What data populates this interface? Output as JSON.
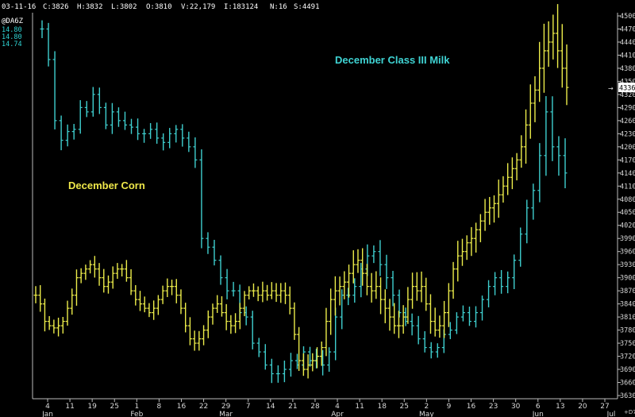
{
  "header": {
    "date": "03-11-16",
    "close": "C:3826",
    "high": "H:3832",
    "low": "L:3802",
    "open": "O:3810",
    "volume": "V:22,179",
    "open_interest": "I:183124",
    "n": "N:16",
    "s": "S:4491"
  },
  "symbol_box": {
    "symbol": "@DA6Z",
    "values": [
      "14.80",
      "14.80",
      "14.74"
    ]
  },
  "last_price_marker": "4336",
  "corner_label": "+D7",
  "colors": {
    "background": "#000000",
    "milk": "#3fcfcf",
    "corn": "#ecec4a",
    "axis": "#bdbdbd",
    "marker_bg": "#ffffff"
  },
  "chart_data": {
    "type": "bar",
    "style": "ohlc",
    "yscale": {
      "min": 3630,
      "max": 4500,
      "tick_step": 30
    },
    "y_ticks": [
      3630,
      3660,
      3690,
      3720,
      3750,
      3780,
      3810,
      3840,
      3870,
      3900,
      3930,
      3960,
      3990,
      4020,
      4050,
      4080,
      4110,
      4140,
      4170,
      4200,
      4230,
      4260,
      4290,
      4320,
      4350,
      4380,
      4410,
      4440,
      4470,
      4500
    ],
    "y_tick_labels": [
      "3630",
      "3660",
      "3690",
      "3720",
      "3750",
      "3780",
      "3810",
      "3840",
      "3870",
      "3900",
      "3930",
      "3960",
      "3990",
      "4020",
      "4050",
      "4080",
      "4110",
      "4140",
      "4170",
      "4200",
      "4230",
      "4260",
      "4290",
      "4320",
      "4350",
      "4380",
      "4410",
      "4440",
      "4470",
      "4500"
    ],
    "x_ticks": [
      "4",
      "11",
      "19",
      "25",
      "1",
      "8",
      "16",
      "22",
      "29",
      "7",
      "14",
      "21",
      "28",
      "4",
      "11",
      "18",
      "25",
      "2",
      "9",
      "16",
      "23",
      "30",
      "6",
      "13",
      "20",
      "27"
    ],
    "months": [
      "Jan",
      "Feb",
      "Mar",
      "Apr",
      "May",
      "Jun",
      "Jul"
    ],
    "annotations": {
      "milk": "December Class III Milk",
      "corn": "December Corn"
    },
    "series": [
      {
        "name": "December Class III Milk",
        "color": "#3fcfcf",
        "close": [
          4470,
          4400,
          4260,
          4215,
          4235,
          4240,
          4290,
          4280,
          4320,
          4290,
          4250,
          4280,
          4260,
          4250,
          4245,
          4230,
          4230,
          4240,
          4220,
          4210,
          4230,
          4240,
          4220,
          4200,
          4170,
          3990,
          3970,
          3940,
          3900,
          3870,
          3870,
          3820,
          3810,
          3750,
          3730,
          3700,
          3680,
          3680,
          3690,
          3710,
          3700,
          3730,
          3710,
          3720,
          3700,
          3730,
          3810,
          3860,
          3860,
          3880,
          3920,
          3950,
          3960,
          3930,
          3900,
          3860,
          3820,
          3800,
          3790,
          3760,
          3740,
          3730,
          3740,
          3770,
          3780,
          3810,
          3820,
          3800,
          3820,
          3850,
          3880,
          3900,
          3880,
          3900,
          3940,
          4000,
          4060,
          4100,
          4180,
          4280,
          4200,
          4180,
          4140
        ],
        "range": [
          40,
          40,
          40,
          35,
          30,
          30,
          30,
          30,
          30,
          30,
          30,
          30,
          30,
          30,
          30,
          35,
          30,
          30,
          30,
          30,
          30,
          30,
          30,
          30,
          40,
          40,
          40,
          35,
          35,
          35,
          30,
          30,
          30,
          30,
          30,
          30,
          35,
          30,
          30,
          30,
          30,
          30,
          30,
          30,
          35,
          35,
          40,
          40,
          35,
          35,
          40,
          40,
          45,
          45,
          40,
          40,
          35,
          35,
          35,
          35,
          35,
          30,
          30,
          30,
          30,
          30,
          30,
          30,
          30,
          30,
          30,
          30,
          30,
          35,
          40,
          45,
          50,
          50,
          60,
          70,
          70,
          70,
          70
        ]
      },
      {
        "name": "December Corn",
        "color": "#ecec4a",
        "close": [
          3860,
          3840,
          3800,
          3790,
          3785,
          3790,
          3800,
          3830,
          3860,
          3900,
          3910,
          3920,
          3930,
          3920,
          3900,
          3880,
          3890,
          3910,
          3920,
          3920,
          3900,
          3870,
          3850,
          3840,
          3830,
          3820,
          3830,
          3850,
          3870,
          3880,
          3880,
          3860,
          3830,
          3790,
          3760,
          3750,
          3760,
          3780,
          3810,
          3830,
          3840,
          3820,
          3800,
          3790,
          3800,
          3830,
          3860,
          3870,
          3870,
          3860,
          3870,
          3860,
          3870,
          3860,
          3870,
          3860,
          3830,
          3770,
          3710,
          3690,
          3700,
          3710,
          3720,
          3740,
          3800,
          3850,
          3870,
          3880,
          3890,
          3910,
          3930,
          3940,
          3910,
          3880,
          3870,
          3880,
          3850,
          3830,
          3810,
          3790,
          3790,
          3810,
          3850,
          3880,
          3870,
          3880,
          3840,
          3800,
          3780,
          3790,
          3820,
          3870,
          3920,
          3950,
          3960,
          3980,
          3990,
          4010,
          4030,
          4050,
          4060,
          4070,
          4090,
          4110,
          4130,
          4150,
          4170,
          4200,
          4250,
          4300,
          4330,
          4380,
          4420,
          4440,
          4460,
          4420,
          4380,
          4336
        ],
        "range": [
          35,
          35,
          35,
          30,
          30,
          30,
          30,
          30,
          35,
          35,
          35,
          30,
          30,
          30,
          30,
          30,
          30,
          30,
          30,
          30,
          30,
          30,
          30,
          30,
          30,
          30,
          30,
          30,
          30,
          30,
          30,
          30,
          30,
          30,
          30,
          30,
          30,
          30,
          30,
          30,
          30,
          30,
          30,
          30,
          30,
          30,
          30,
          30,
          30,
          30,
          30,
          30,
          30,
          30,
          30,
          30,
          35,
          40,
          45,
          45,
          40,
          40,
          40,
          40,
          60,
          70,
          70,
          60,
          60,
          60,
          60,
          60,
          60,
          60,
          60,
          60,
          60,
          55,
          50,
          50,
          50,
          50,
          50,
          50,
          50,
          50,
          50,
          45,
          45,
          45,
          45,
          50,
          50,
          50,
          50,
          50,
          50,
          50,
          50,
          50,
          50,
          50,
          50,
          50,
          50,
          50,
          50,
          55,
          60,
          70,
          80,
          90,
          90,
          90,
          90,
          100,
          100,
          100
        ]
      }
    ]
  }
}
